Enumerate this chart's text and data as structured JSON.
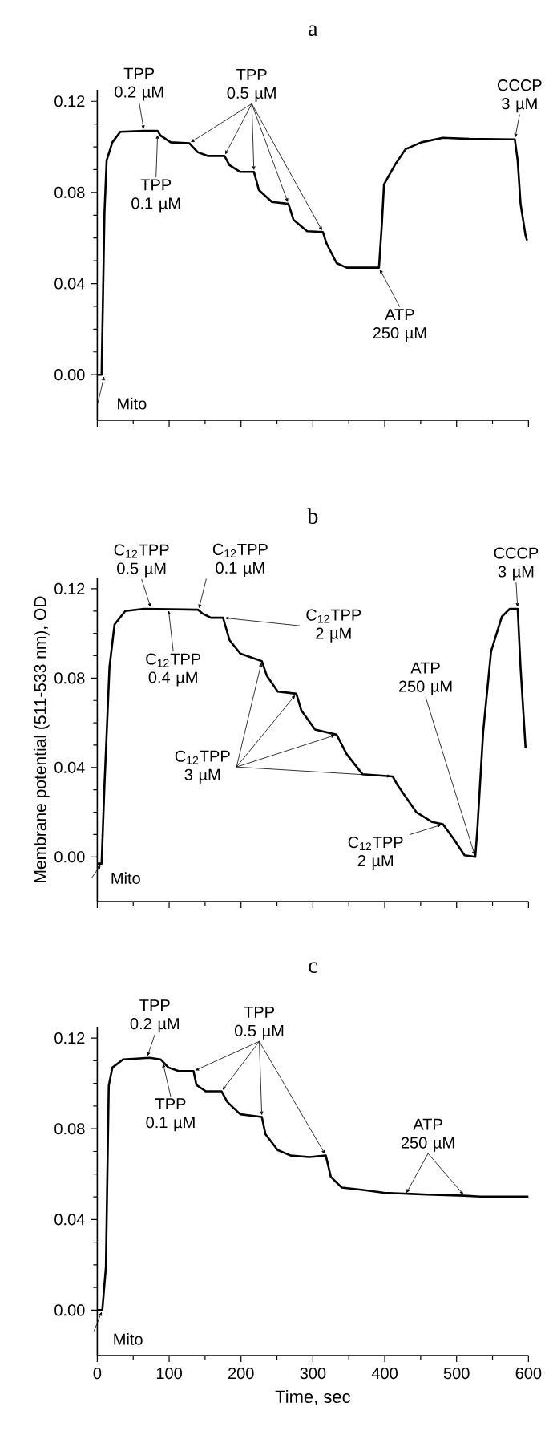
{
  "chart_data": [
    {
      "type": "line",
      "title": "a",
      "x": [
        0,
        4.5,
        6,
        10,
        13,
        21,
        32,
        65,
        84,
        88,
        102,
        128,
        140,
        154,
        177,
        184,
        199,
        218,
        225,
        243,
        266,
        273,
        292,
        314,
        319,
        333,
        347,
        392,
        396,
        399,
        414,
        429,
        451,
        481,
        518,
        581,
        585,
        589,
        596,
        598
      ],
      "series": [
        {
          "color": "#000000",
          "values": [
            0,
            0,
            0,
            0.071,
            0.094,
            0.102,
            0.1066,
            0.107,
            0.107,
            0.105,
            0.102,
            0.1016,
            0.0976,
            0.096,
            0.096,
            0.092,
            0.089,
            0.089,
            0.081,
            0.0758,
            0.075,
            0.068,
            0.063,
            0.0626,
            0.0576,
            0.049,
            0.047,
            0.047,
            0.066,
            0.0835,
            0.092,
            0.099,
            0.102,
            0.104,
            0.1035,
            0.1033,
            0.094,
            0.075,
            0.061,
            0.059
          ]
        }
      ],
      "xlim": [
        0,
        600
      ],
      "xticks": [
        0,
        100,
        200,
        300,
        400,
        500,
        600
      ],
      "ylim": [
        -0.02,
        0.125
      ],
      "yticks": [
        {
          "value": 0,
          "label": "0.00"
        },
        {
          "value": 0.04,
          "label": "0.04"
        },
        {
          "value": 0.08,
          "label": "0.08"
        },
        {
          "value": 0.12,
          "label": "0.12"
        }
      ],
      "tick_labels": "y",
      "annotations": [
        {
          "text": "TPP 0.2 µM",
          "x": 65,
          "y": 0.107
        },
        {
          "text": "TPP 0.1 µM",
          "x": 84,
          "y": 0.106
        },
        {
          "text": "TPP 0.5 µM",
          "x": 128,
          "y": 0.1016
        },
        {
          "text": "ATP 250 µM",
          "x": 392,
          "y": 0.047
        },
        {
          "text": "CCCP 3 µM",
          "x": 581,
          "y": 0.1033
        },
        {
          "text": "Mito",
          "x": 10,
          "y": 0
        }
      ]
    },
    {
      "type": "line",
      "title": "b",
      "ylabel": "Membrane potential (511-533 nm), OD",
      "x": [
        0,
        6,
        10,
        17,
        24,
        39,
        65,
        140,
        146,
        158,
        175,
        184,
        199,
        229,
        236,
        251,
        277,
        284,
        303,
        333,
        347,
        369,
        411,
        418,
        444,
        466,
        481,
        496,
        511,
        526,
        529,
        537,
        548,
        563,
        574,
        585,
        589,
        596
      ],
      "series": [
        {
          "color": "#000000",
          "values": [
            -0.003,
            -0.003,
            0.032,
            0.085,
            0.104,
            0.11,
            0.111,
            0.1106,
            0.109,
            0.107,
            0.107,
            0.097,
            0.091,
            0.0876,
            0.081,
            0.074,
            0.073,
            0.0655,
            0.057,
            0.0547,
            0.046,
            0.037,
            0.036,
            0.032,
            0.02,
            0.0156,
            0.0146,
            0.008,
            0.0007,
            0,
            0.0127,
            0.056,
            0.092,
            0.1075,
            0.111,
            0.111,
            0.0847,
            0.0487
          ]
        }
      ],
      "xlim": [
        0,
        600
      ],
      "xticks": [
        0,
        100,
        200,
        300,
        400,
        500,
        600
      ],
      "ylim": [
        -0.02,
        0.125
      ],
      "yticks": [
        {
          "value": 0,
          "label": "0.00"
        },
        {
          "value": 0.04,
          "label": "0.04"
        },
        {
          "value": 0.08,
          "label": "0.08"
        },
        {
          "value": 0.12,
          "label": "0.12"
        }
      ],
      "tick_labels": "y",
      "annotations": [
        {
          "text": "C$_{12}$TPP 0.5 µM",
          "x": 75,
          "y": 0.111
        },
        {
          "text": "C$_{12}$TPP 0.4 µM",
          "x": 99,
          "y": 0.111
        },
        {
          "text": "C$_{12}$TPP 0.1 µM",
          "x": 141,
          "y": 0.1105
        },
        {
          "text": "C$_{12}$TPP 2 µM",
          "x": 175,
          "y": 0.107
        },
        {
          "text": "C$_{12}$TPP 3 µM",
          "x": 229,
          "y": 0.0876
        },
        {
          "text": "C$_{12}$TPP 2 µM",
          "x": 481,
          "y": 0.0146
        },
        {
          "text": "ATP 250 µM",
          "x": 526,
          "y": 0
        },
        {
          "text": "CCCP 3 µM",
          "x": 585,
          "y": 0.111
        },
        {
          "text": "Mito",
          "x": 6,
          "y": -0.003
        }
      ]
    },
    {
      "type": "line",
      "title": "c",
      "xlabel": "Time, sec",
      "x": [
        0,
        7,
        12,
        16,
        21,
        36,
        73,
        88,
        99,
        114,
        134,
        138,
        151,
        173,
        181,
        199,
        229,
        234,
        251,
        269,
        295,
        318,
        325,
        340,
        370,
        399,
        459,
        511,
        533,
        600
      ],
      "series": [
        {
          "color": "#000000",
          "values": [
            0,
            0,
            0.019,
            0.099,
            0.107,
            0.1106,
            0.1113,
            0.1106,
            0.107,
            0.1054,
            0.1054,
            0.0993,
            0.0965,
            0.0965,
            0.0918,
            0.0864,
            0.0852,
            0.0776,
            0.0706,
            0.0682,
            0.0675,
            0.0682,
            0.0588,
            0.0541,
            0.053,
            0.0518,
            0.051,
            0.0505,
            0.0501,
            0.0501
          ]
        }
      ],
      "xlim": [
        0,
        600
      ],
      "xticks": [
        0,
        100,
        200,
        300,
        400,
        500,
        600
      ],
      "ylim": [
        -0.02,
        0.125
      ],
      "yticks": [
        {
          "value": 0,
          "label": "0.00"
        },
        {
          "value": 0.04,
          "label": "0.04"
        },
        {
          "value": 0.08,
          "label": "0.08"
        },
        {
          "value": 0.12,
          "label": "0.12"
        }
      ],
      "annotations": [
        {
          "text": "TPP 0.2 µM",
          "x": 69,
          "y": 0.1113
        },
        {
          "text": "TPP 0.1 µM",
          "x": 91,
          "y": 0.1095
        },
        {
          "text": "TPP 0.5 µM",
          "x": 134,
          "y": 0.1054
        },
        {
          "text": "ATP 250 µM",
          "x": 429,
          "y": 0.051
        },
        {
          "text": "Mito",
          "x": 7,
          "y": 0
        }
      ]
    }
  ]
}
